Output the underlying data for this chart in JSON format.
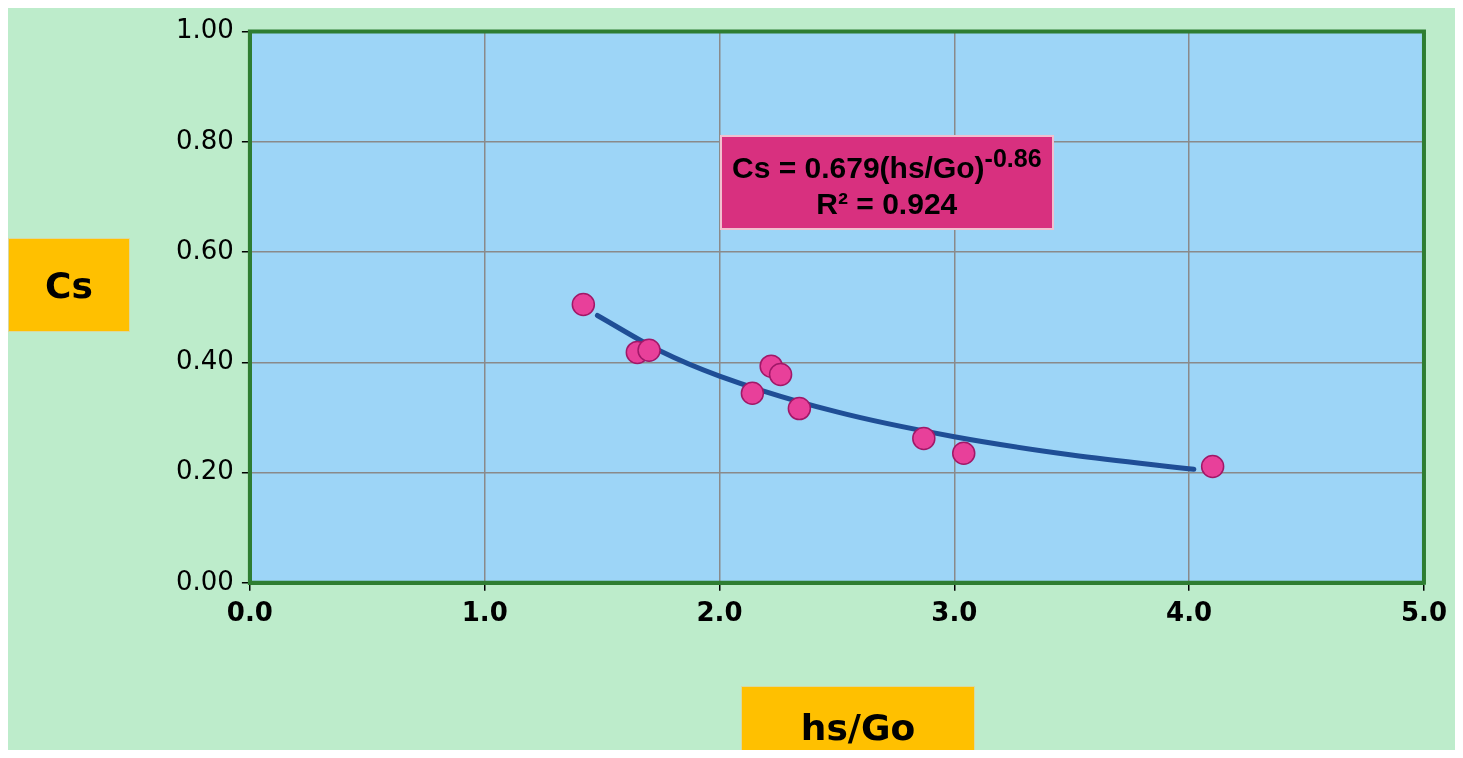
{
  "chart_data": {
    "type": "scatter",
    "xlabel": "hs/Go",
    "ylabel": "Cs",
    "annotations": [
      "Cs = 0.679(hs/Go)$^{-0.86}$",
      "R² = 0.924"
    ],
    "series": [
      {
        "color": "#e8409a",
        "x": [
          1.42,
          1.65,
          1.7,
          2.14,
          2.22,
          2.26,
          2.34,
          2.87,
          3.04,
          4.1
        ],
        "values": [
          0.505,
          0.418,
          0.422,
          0.344,
          0.393,
          0.378,
          0.316,
          0.262,
          0.235,
          0.211
        ],
        "marker": "circle"
      },
      {
        "type": "line",
        "color": "#1f4e96",
        "x": [
          1.48,
          1.75,
          2.0,
          2.5,
          3.0,
          3.5,
          4.02
        ],
        "values": [
          0.485,
          0.42,
          0.375,
          0.31,
          0.265,
          0.232,
          0.206
        ],
        "marker": "none",
        "line_style": "solid"
      }
    ],
    "xlim": [
      0,
      5
    ],
    "ylim": [
      0,
      1
    ],
    "xticks": [
      {
        "value": 0,
        "label": "0.0"
      },
      {
        "value": 1,
        "label": "1.0"
      },
      {
        "value": 2,
        "label": "2.0"
      },
      {
        "value": 3,
        "label": "3.0"
      },
      {
        "value": 4,
        "label": "4.0"
      },
      {
        "value": 5,
        "label": "5.0"
      }
    ],
    "yticks": [
      {
        "value": 0,
        "label": "0.00"
      },
      {
        "value": 0.2,
        "label": "0.20"
      },
      {
        "value": 0.4,
        "label": "0.40"
      },
      {
        "value": 0.6,
        "label": "0.60"
      },
      {
        "value": 0.8,
        "label": "0.80"
      },
      {
        "value": 1,
        "label": "1.00"
      }
    ],
    "grid": true,
    "legend": false
  }
}
